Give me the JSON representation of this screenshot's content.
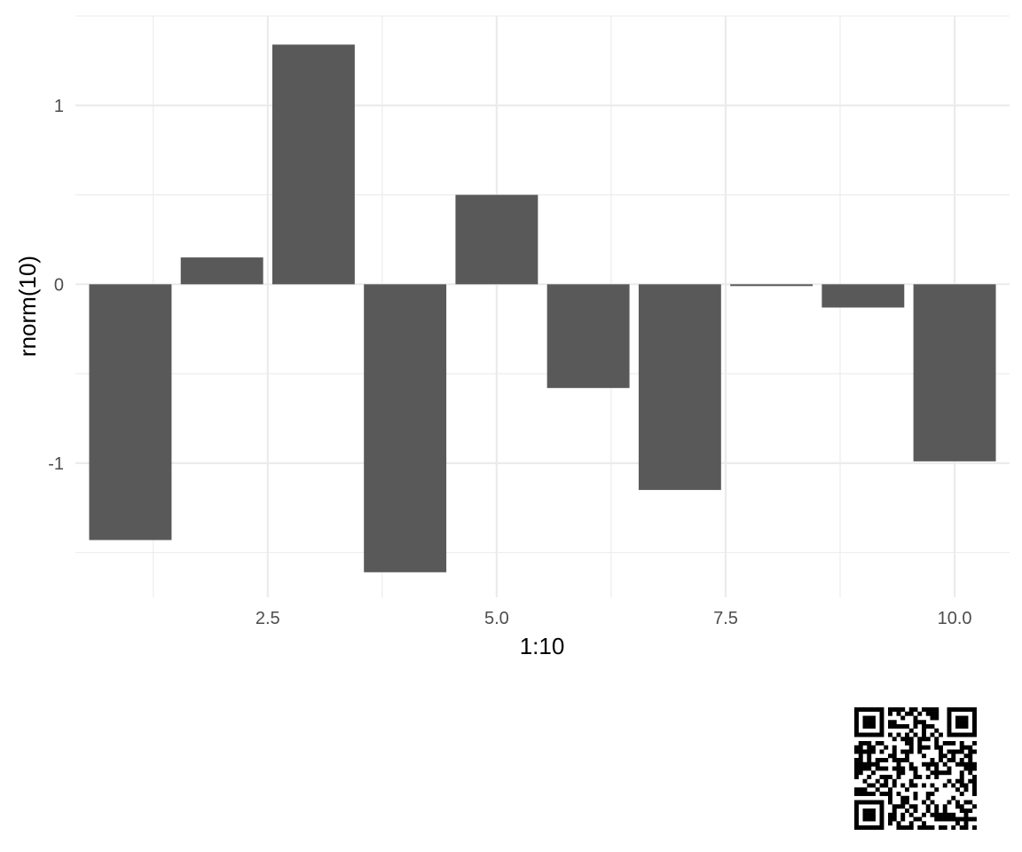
{
  "chart_data": {
    "type": "bar",
    "x": [
      1,
      2,
      3,
      4,
      5,
      6,
      7,
      8,
      9,
      10
    ],
    "values": [
      -1.43,
      0.15,
      1.34,
      -1.61,
      0.5,
      -0.58,
      -1.15,
      -0.01,
      -0.13,
      -0.99
    ],
    "xlabel": "1:10",
    "ylabel": "rnorm(10)",
    "xlim": [
      0.4,
      10.6
    ],
    "ylim": [
      -1.75,
      1.5
    ],
    "x_ticks": [
      {
        "value": 2.5,
        "label": "2.5"
      },
      {
        "value": 5.0,
        "label": "5.0"
      },
      {
        "value": 7.5,
        "label": "7.5"
      },
      {
        "value": 10.0,
        "label": "10.0"
      }
    ],
    "y_ticks": [
      {
        "value": -1,
        "label": "-1"
      },
      {
        "value": 0,
        "label": "0"
      },
      {
        "value": 1,
        "label": "1"
      }
    ],
    "grid": true,
    "legend": "none",
    "colors": {
      "bar": "#595959",
      "grid": "#ebebeb",
      "tick_text": "#4d4d4d",
      "title_text": "#000000"
    }
  },
  "qr_code": {
    "icon": "qr-code-icon"
  }
}
